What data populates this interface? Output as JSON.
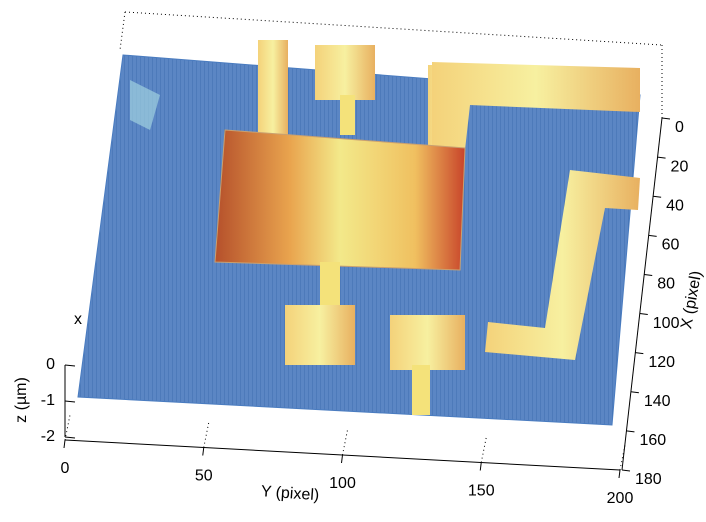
{
  "chart_data": {
    "type": "surface",
    "annotation": "x",
    "x_label": "Y (pixel)",
    "y_label": "X (pixel)",
    "z_label": "z (µm)",
    "xlim": [
      0,
      200
    ],
    "xticks": [
      0,
      50,
      100,
      150,
      200
    ],
    "ylim": [
      0,
      180
    ],
    "yticks": [
      0,
      20,
      40,
      60,
      80,
      100,
      120,
      140,
      160,
      180
    ],
    "zlim": [
      -2,
      0
    ],
    "zticks": [
      0,
      -1,
      -2
    ]
  }
}
